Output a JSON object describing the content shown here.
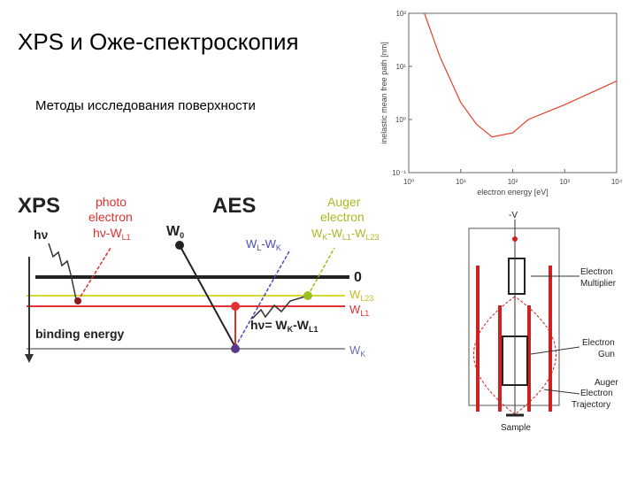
{
  "header": {
    "title": "XPS и Оже-спектроскопия",
    "subtitle": "Методы исследования поверхности"
  },
  "chart_data": {
    "type": "line",
    "xlabel": "electron energy [eV]",
    "ylabel": "inelastic mean free path [nm]",
    "x": [
      2,
      4,
      10,
      20,
      40,
      100,
      200,
      1000,
      10000
    ],
    "values": [
      100,
      15,
      2.1,
      0.82,
      0.47,
      0.56,
      1,
      1.9,
      5.3
    ],
    "color": "#e8402a",
    "xlim": [
      1,
      10000
    ],
    "ylim": [
      0.1,
      100
    ],
    "xlog": true,
    "ylog": true,
    "xticks": [
      {
        "value": 1,
        "label": "10⁰"
      },
      {
        "value": 10,
        "label": "10¹"
      },
      {
        "value": 100,
        "label": "10²"
      },
      {
        "value": 1000,
        "label": "10³"
      },
      {
        "value": 10000,
        "label": "10⁴"
      }
    ],
    "yticks": [
      {
        "value": 0.1,
        "label": "10⁻¹"
      },
      {
        "value": 1,
        "label": "10⁰"
      },
      {
        "value": 10,
        "label": "10¹"
      },
      {
        "value": 100,
        "label": "10²"
      }
    ]
  },
  "energy_diagram": {
    "xps": "XPS",
    "aes": "AES",
    "photo": [
      "photo",
      "electron"
    ],
    "photo_energy": {
      "main": "hν-W",
      "sub": "L1"
    },
    "hv": "hν",
    "w0": {
      "main": "W",
      "sub": "0"
    },
    "wk_wl": {
      "a": "W",
      "as": "L",
      "b": "-W",
      "bs": "K"
    },
    "auger": [
      "Auger",
      "electron"
    ],
    "auger_energy": {
      "a": "W",
      "as": "K",
      "b": "-W",
      "bs": "L1",
      "c": "-W",
      "cs": "L23"
    },
    "zero": "0",
    "wl23": {
      "main": "W",
      "sub": "L23"
    },
    "wl1": {
      "main": "W",
      "sub": "L1"
    },
    "wk": {
      "main": "W",
      "sub": "K"
    },
    "binding": "binding energy",
    "emission": {
      "a": "hν= W",
      "as": "K",
      "b": "-W",
      "bs": "L1"
    }
  },
  "apparatus": {
    "voltage": "-V",
    "multiplier": [
      "Electron",
      "Multiplier"
    ],
    "gun": [
      "Electron",
      "Gun"
    ],
    "trajectory": [
      "Auger",
      "Electron",
      "Trajectory"
    ],
    "sample": "Sample"
  }
}
